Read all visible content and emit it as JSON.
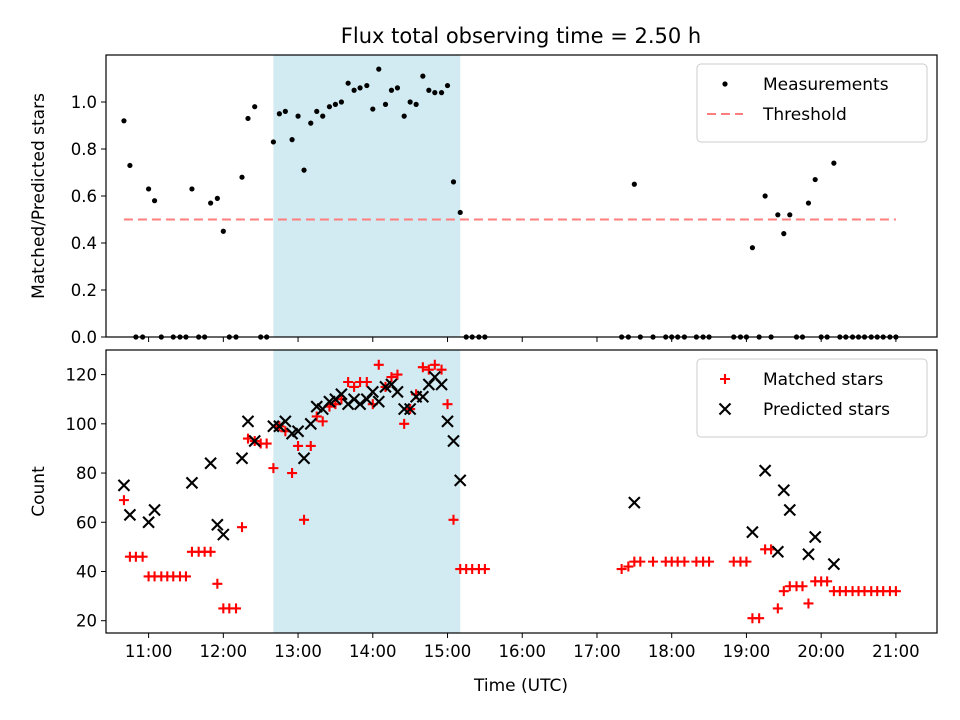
{
  "figure_title": "Flux total observing time = 2.50 h",
  "xlabel": "Time (UTC)",
  "chart_data": [
    {
      "type": "scatter",
      "ylabel": "Matched/Predicted stars",
      "xlim": [
        10.43,
        21.55
      ],
      "ylim": [
        0,
        1.2
      ],
      "yticks": [
        0.0,
        0.2,
        0.4,
        0.6,
        0.8,
        1.0
      ],
      "grid": false,
      "legend_position": "upper right",
      "shaded_interval": {
        "from": 12.67,
        "to": 15.17,
        "color": "#add8e6"
      },
      "series": [
        {
          "name": "Measurements",
          "marker": "dot",
          "color": "#000000",
          "points": [
            [
              10.67,
              0.92
            ],
            [
              10.75,
              0.73
            ],
            [
              10.83,
              0.0
            ],
            [
              10.92,
              0.0
            ],
            [
              11.0,
              0.63
            ],
            [
              11.08,
              0.58
            ],
            [
              11.17,
              0.0
            ],
            [
              11.33,
              0.0
            ],
            [
              11.42,
              0.0
            ],
            [
              11.5,
              0.0
            ],
            [
              11.58,
              0.63
            ],
            [
              11.67,
              0.0
            ],
            [
              11.75,
              0.0
            ],
            [
              11.83,
              0.57
            ],
            [
              11.92,
              0.59
            ],
            [
              12.0,
              0.45
            ],
            [
              12.08,
              0.0
            ],
            [
              12.17,
              0.0
            ],
            [
              12.25,
              0.68
            ],
            [
              12.33,
              0.93
            ],
            [
              12.42,
              0.98
            ],
            [
              12.5,
              0.0
            ],
            [
              12.58,
              0.0
            ],
            [
              12.67,
              0.83
            ],
            [
              12.75,
              0.95
            ],
            [
              12.83,
              0.96
            ],
            [
              12.92,
              0.84
            ],
            [
              13.0,
              0.94
            ],
            [
              13.08,
              0.71
            ],
            [
              13.17,
              0.91
            ],
            [
              13.25,
              0.96
            ],
            [
              13.33,
              0.94
            ],
            [
              13.42,
              0.98
            ],
            [
              13.5,
              0.99
            ],
            [
              13.58,
              1.0
            ],
            [
              13.67,
              1.08
            ],
            [
              13.75,
              1.05
            ],
            [
              13.83,
              1.06
            ],
            [
              13.92,
              1.07
            ],
            [
              14.0,
              0.97
            ],
            [
              14.08,
              1.14
            ],
            [
              14.17,
              0.99
            ],
            [
              14.25,
              1.05
            ],
            [
              14.33,
              1.06
            ],
            [
              14.42,
              0.94
            ],
            [
              14.5,
              1.0
            ],
            [
              14.58,
              0.99
            ],
            [
              14.67,
              1.11
            ],
            [
              14.75,
              1.05
            ],
            [
              14.83,
              1.04
            ],
            [
              14.92,
              1.04
            ],
            [
              15.0,
              1.07
            ],
            [
              15.08,
              0.66
            ],
            [
              15.17,
              0.53
            ],
            [
              15.25,
              0.0
            ],
            [
              15.33,
              0.0
            ],
            [
              15.42,
              0.0
            ],
            [
              15.5,
              0.0
            ],
            [
              17.33,
              0.0
            ],
            [
              17.42,
              0.0
            ],
            [
              17.5,
              0.65
            ],
            [
              17.58,
              0.0
            ],
            [
              17.75,
              0.0
            ],
            [
              17.92,
              0.0
            ],
            [
              18.0,
              0.0
            ],
            [
              18.08,
              0.0
            ],
            [
              18.17,
              0.0
            ],
            [
              18.33,
              0.0
            ],
            [
              18.42,
              0.0
            ],
            [
              18.5,
              0.0
            ],
            [
              18.83,
              0.0
            ],
            [
              18.92,
              0.0
            ],
            [
              19.0,
              0.0
            ],
            [
              19.08,
              0.38
            ],
            [
              19.17,
              0.0
            ],
            [
              19.25,
              0.6
            ],
            [
              19.33,
              0.0
            ],
            [
              19.42,
              0.52
            ],
            [
              19.5,
              0.44
            ],
            [
              19.58,
              0.52
            ],
            [
              19.67,
              0.0
            ],
            [
              19.75,
              0.0
            ],
            [
              19.83,
              0.57
            ],
            [
              19.92,
              0.67
            ],
            [
              20.0,
              0.0
            ],
            [
              20.08,
              0.0
            ],
            [
              20.17,
              0.74
            ],
            [
              20.25,
              0.0
            ],
            [
              20.33,
              0.0
            ],
            [
              20.42,
              0.0
            ],
            [
              20.5,
              0.0
            ],
            [
              20.58,
              0.0
            ],
            [
              20.67,
              0.0
            ],
            [
              20.75,
              0.0
            ],
            [
              20.83,
              0.0
            ],
            [
              20.92,
              0.0
            ],
            [
              21.0,
              0.0
            ]
          ]
        },
        {
          "name": "Threshold",
          "marker": "dashed-line",
          "color": "#ff7f7f",
          "points": [
            [
              10.67,
              0.5
            ],
            [
              21.0,
              0.5
            ]
          ]
        }
      ]
    },
    {
      "type": "scatter",
      "ylabel": "Count",
      "xlim": [
        10.43,
        21.55
      ],
      "ylim": [
        15,
        130
      ],
      "yticks": [
        20,
        40,
        60,
        80,
        100,
        120
      ],
      "xticks": [
        11,
        12,
        13,
        14,
        15,
        16,
        17,
        18,
        19,
        20,
        21
      ],
      "xticklabels": [
        "11:00",
        "12:00",
        "13:00",
        "14:00",
        "15:00",
        "16:00",
        "17:00",
        "18:00",
        "19:00",
        "20:00",
        "21:00"
      ],
      "grid": false,
      "legend_position": "upper right",
      "shaded_interval": {
        "from": 12.67,
        "to": 15.17,
        "color": "#add8e6"
      },
      "series": [
        {
          "name": "Matched stars",
          "marker": "plus",
          "color": "#ff0000",
          "points": [
            [
              10.67,
              69
            ],
            [
              10.75,
              46
            ],
            [
              10.83,
              46
            ],
            [
              10.92,
              46
            ],
            [
              11.0,
              38
            ],
            [
              11.08,
              38
            ],
            [
              11.17,
              38
            ],
            [
              11.25,
              38
            ],
            [
              11.33,
              38
            ],
            [
              11.42,
              38
            ],
            [
              11.5,
              38
            ],
            [
              11.58,
              48
            ],
            [
              11.67,
              48
            ],
            [
              11.75,
              48
            ],
            [
              11.83,
              48
            ],
            [
              11.92,
              35
            ],
            [
              12.0,
              25
            ],
            [
              12.08,
              25
            ],
            [
              12.17,
              25
            ],
            [
              12.25,
              58
            ],
            [
              12.33,
              94
            ],
            [
              12.42,
              93
            ],
            [
              12.5,
              92
            ],
            [
              12.58,
              92
            ],
            [
              12.67,
              82
            ],
            [
              12.75,
              99
            ],
            [
              12.83,
              97
            ],
            [
              12.92,
              80
            ],
            [
              13.0,
              91
            ],
            [
              13.08,
              61
            ],
            [
              13.17,
              91
            ],
            [
              13.25,
              103
            ],
            [
              13.33,
              101
            ],
            [
              13.42,
              107
            ],
            [
              13.5,
              108
            ],
            [
              13.58,
              110
            ],
            [
              13.67,
              117
            ],
            [
              13.75,
              115
            ],
            [
              13.83,
              117
            ],
            [
              13.92,
              117
            ],
            [
              14.0,
              108
            ],
            [
              14.08,
              124
            ],
            [
              14.17,
              115
            ],
            [
              14.25,
              119
            ],
            [
              14.33,
              120
            ],
            [
              14.42,
              100
            ],
            [
              14.5,
              106
            ],
            [
              14.58,
              112
            ],
            [
              14.67,
              123
            ],
            [
              14.75,
              122
            ],
            [
              14.83,
              124
            ],
            [
              14.92,
              122
            ],
            [
              15.0,
              108
            ],
            [
              15.08,
              61
            ],
            [
              15.17,
              41
            ],
            [
              15.25,
              41
            ],
            [
              15.33,
              41
            ],
            [
              15.42,
              41
            ],
            [
              15.5,
              41
            ],
            [
              17.33,
              41
            ],
            [
              17.42,
              42
            ],
            [
              17.5,
              44
            ],
            [
              17.58,
              44
            ],
            [
              17.75,
              44
            ],
            [
              17.92,
              44
            ],
            [
              18.0,
              44
            ],
            [
              18.08,
              44
            ],
            [
              18.17,
              44
            ],
            [
              18.33,
              44
            ],
            [
              18.42,
              44
            ],
            [
              18.5,
              44
            ],
            [
              18.83,
              44
            ],
            [
              18.92,
              44
            ],
            [
              19.0,
              44
            ],
            [
              19.08,
              21
            ],
            [
              19.17,
              21
            ],
            [
              19.25,
              49
            ],
            [
              19.33,
              49
            ],
            [
              19.42,
              25
            ],
            [
              19.5,
              32
            ],
            [
              19.58,
              34
            ],
            [
              19.67,
              34
            ],
            [
              19.75,
              34
            ],
            [
              19.83,
              27
            ],
            [
              19.92,
              36
            ],
            [
              20.0,
              36
            ],
            [
              20.08,
              36
            ],
            [
              20.17,
              32
            ],
            [
              20.25,
              32
            ],
            [
              20.33,
              32
            ],
            [
              20.42,
              32
            ],
            [
              20.5,
              32
            ],
            [
              20.58,
              32
            ],
            [
              20.67,
              32
            ],
            [
              20.75,
              32
            ],
            [
              20.83,
              32
            ],
            [
              20.92,
              32
            ],
            [
              21.0,
              32
            ]
          ]
        },
        {
          "name": "Predicted stars",
          "marker": "x",
          "color": "#000000",
          "points": [
            [
              10.67,
              75
            ],
            [
              10.75,
              63
            ],
            [
              11.0,
              60
            ],
            [
              11.08,
              65
            ],
            [
              11.58,
              76
            ],
            [
              11.83,
              84
            ],
            [
              11.92,
              59
            ],
            [
              12.0,
              55
            ],
            [
              12.25,
              86
            ],
            [
              12.33,
              101
            ],
            [
              12.42,
              93
            ],
            [
              12.67,
              99
            ],
            [
              12.75,
              99
            ],
            [
              12.83,
              101
            ],
            [
              12.92,
              96
            ],
            [
              13.0,
              97
            ],
            [
              13.08,
              86
            ],
            [
              13.17,
              100
            ],
            [
              13.25,
              107
            ],
            [
              13.33,
              106
            ],
            [
              13.42,
              109
            ],
            [
              13.5,
              110
            ],
            [
              13.58,
              112
            ],
            [
              13.67,
              108
            ],
            [
              13.75,
              110
            ],
            [
              13.83,
              108
            ],
            [
              13.92,
              110
            ],
            [
              14.0,
              113
            ],
            [
              14.08,
              109
            ],
            [
              14.17,
              115
            ],
            [
              14.25,
              116
            ],
            [
              14.33,
              113
            ],
            [
              14.42,
              106
            ],
            [
              14.5,
              106
            ],
            [
              14.58,
              111
            ],
            [
              14.67,
              111
            ],
            [
              14.75,
              116
            ],
            [
              14.83,
              119
            ],
            [
              14.92,
              116
            ],
            [
              15.0,
              101
            ],
            [
              15.08,
              93
            ],
            [
              15.17,
              77
            ],
            [
              17.5,
              68
            ],
            [
              19.08,
              56
            ],
            [
              19.25,
              81
            ],
            [
              19.42,
              48
            ],
            [
              19.5,
              73
            ],
            [
              19.58,
              65
            ],
            [
              19.83,
              47
            ],
            [
              19.92,
              54
            ],
            [
              20.17,
              43
            ]
          ]
        }
      ]
    }
  ]
}
